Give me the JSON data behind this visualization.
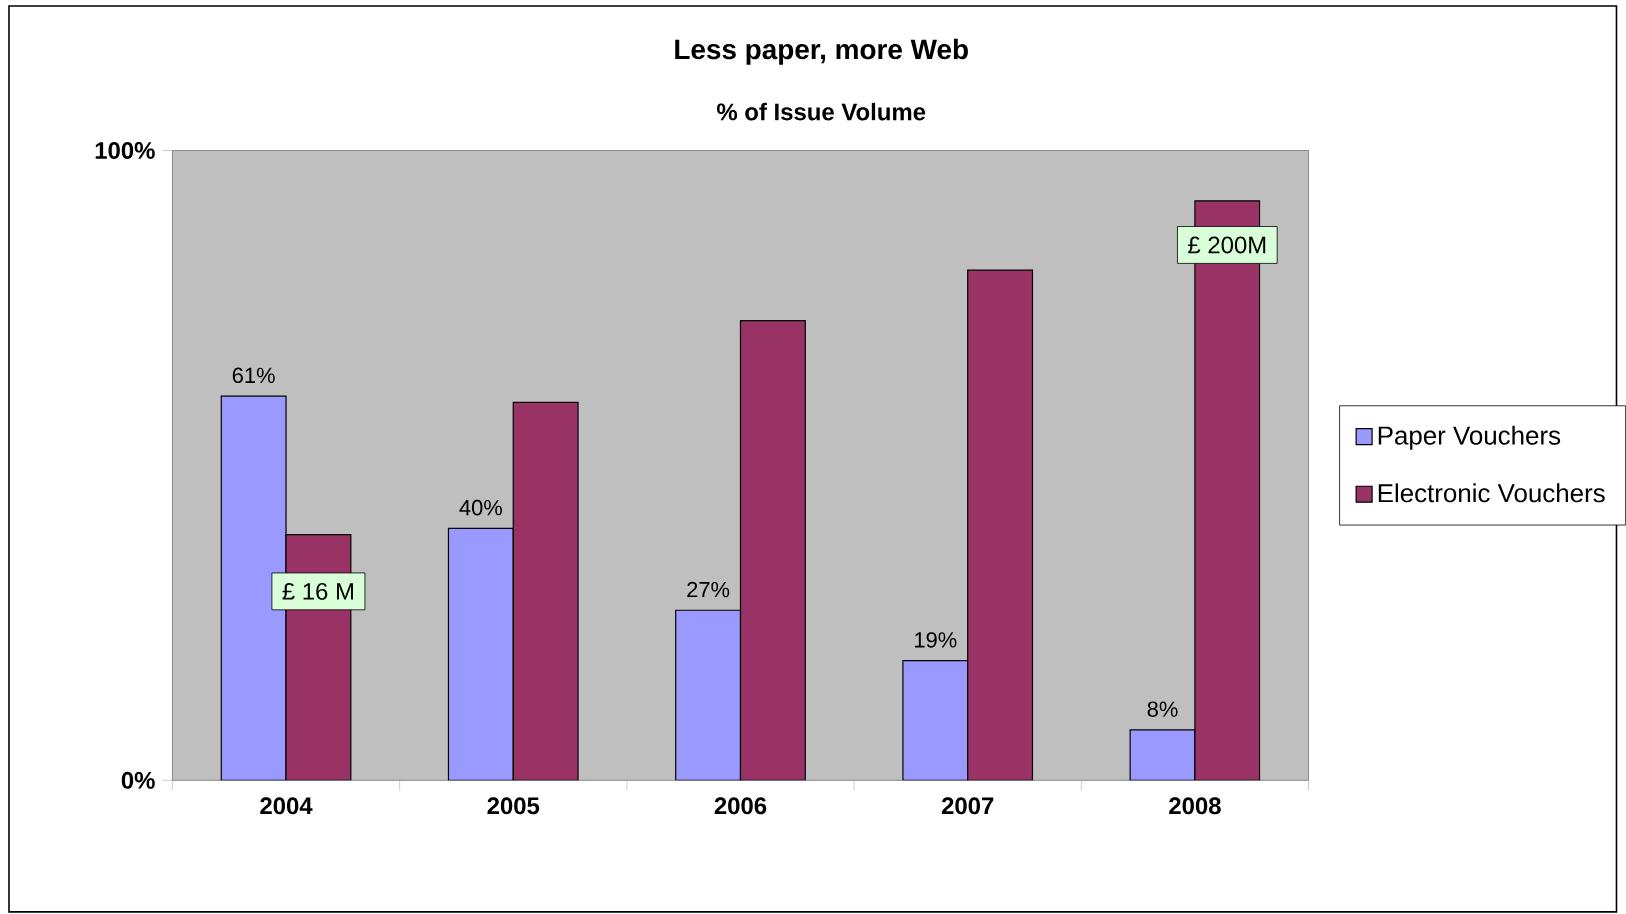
{
  "chart_data": {
    "type": "bar",
    "title": "Less paper, more Web",
    "subtitle": "% of Issue Volume",
    "categories": [
      "2004",
      "2005",
      "2006",
      "2007",
      "2008"
    ],
    "series": [
      {
        "name": "Paper Vouchers",
        "color": "#9999ff",
        "values": [
          61,
          40,
          27,
          19,
          8
        ],
        "value_labels": [
          "61%",
          "40%",
          "27%",
          "19%",
          "8%"
        ]
      },
      {
        "name": "Electronic Vouchers",
        "color": "#993366",
        "values": [
          39,
          60,
          73,
          81,
          92
        ]
      }
    ],
    "ylim": [
      0,
      100
    ],
    "yticks": [
      {
        "value": 0,
        "label": "0%"
      },
      {
        "value": 100,
        "label": "100%"
      }
    ],
    "annotations": [
      {
        "text": "£ 16 M",
        "x": "2004",
        "y": 30
      },
      {
        "text": "£ 200M",
        "x": "2008",
        "y": 85
      }
    ],
    "legend": "right",
    "grid": false
  }
}
